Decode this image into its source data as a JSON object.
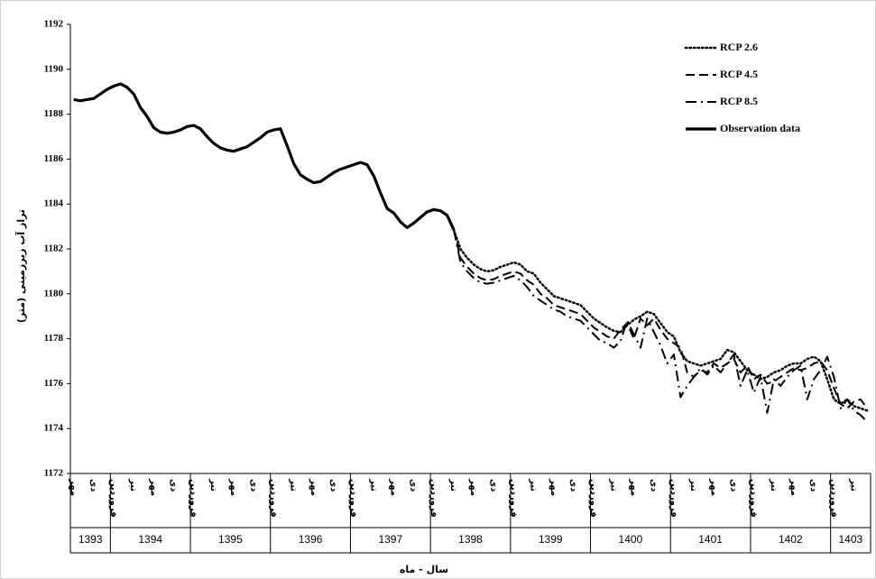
{
  "chart_data": {
    "type": "line",
    "y_label": "تراز آب زیرزمینی (متر)",
    "x_label": "سال - ماه",
    "ylim": [
      1172,
      1192
    ],
    "yticks": [
      1172,
      1174,
      1176,
      1178,
      1180,
      1182,
      1184,
      1186,
      1188,
      1190,
      1192
    ],
    "grid": false,
    "legend": "top-right",
    "categories": [
      "مهر",
      null,
      null,
      "دی",
      null,
      null,
      "فروردین",
      null,
      null,
      "تیر",
      null,
      null,
      "مهر",
      null,
      null,
      "دی",
      null,
      null,
      "فروردین",
      null,
      null,
      "تیر",
      null,
      null,
      "مهر",
      null,
      null,
      "دی",
      null,
      null,
      "فروردین",
      null,
      null,
      "تیر",
      null,
      null,
      "مهر",
      null,
      null,
      "دی",
      null,
      null,
      "فروردین",
      null,
      null,
      "تیر",
      null,
      null,
      "مهر",
      null,
      null,
      "دی",
      null,
      null,
      "فروردین",
      null,
      null,
      "تیر",
      null,
      null,
      "مهر",
      null,
      null,
      "دی",
      null,
      null,
      "فروردین",
      null,
      null,
      "تیر",
      null,
      null,
      "مهر",
      null,
      null,
      "دی",
      null,
      null,
      "فروردین",
      null,
      null,
      "تیر",
      null,
      null,
      "مهر",
      null,
      null,
      "دی",
      null,
      null,
      "فروردین",
      null,
      null,
      "تیر",
      null,
      null,
      "مهر",
      null,
      null,
      "دی",
      null,
      null,
      "فروردین",
      null,
      null,
      "تیر",
      null,
      null,
      "مهر",
      null,
      null,
      "دی",
      null,
      null,
      "فروردین",
      null,
      null,
      "تیر",
      null,
      null
    ],
    "year_categories": [
      "1393",
      null,
      null,
      null,
      null,
      null,
      "1394",
      null,
      null,
      null,
      null,
      null,
      null,
      null,
      null,
      null,
      null,
      null,
      "1395",
      null,
      null,
      null,
      null,
      null,
      null,
      null,
      null,
      null,
      null,
      null,
      "1396",
      null,
      null,
      null,
      null,
      null,
      null,
      null,
      null,
      null,
      null,
      null,
      "1397",
      null,
      null,
      null,
      null,
      null,
      null,
      null,
      null,
      null,
      null,
      null,
      "1398",
      null,
      null,
      null,
      null,
      null,
      null,
      null,
      null,
      null,
      null,
      null,
      "1399",
      null,
      null,
      null,
      null,
      null,
      null,
      null,
      null,
      null,
      null,
      null,
      "1400",
      null,
      null,
      null,
      null,
      null,
      null,
      null,
      null,
      null,
      null,
      null,
      "1401",
      null,
      null,
      null,
      null,
      null,
      null,
      null,
      null,
      null,
      null,
      null,
      "1402",
      null,
      null,
      null,
      null,
      null,
      null,
      null,
      null,
      null,
      null,
      null,
      "1403",
      null,
      null,
      null,
      null,
      null
    ],
    "series": [
      {
        "name": "RCP 2.6",
        "color": "#000000",
        "dash": "dotted",
        "values": [
          null,
          null,
          null,
          null,
          null,
          null,
          null,
          null,
          null,
          null,
          null,
          null,
          null,
          null,
          null,
          null,
          null,
          null,
          null,
          null,
          null,
          null,
          null,
          null,
          null,
          null,
          null,
          null,
          null,
          null,
          null,
          null,
          null,
          null,
          null,
          null,
          null,
          null,
          null,
          null,
          null,
          null,
          null,
          null,
          null,
          null,
          null,
          null,
          null,
          null,
          null,
          null,
          null,
          null,
          null,
          null,
          null,
          1182.85,
          1182.0,
          1181.6,
          1181.3,
          1181.1,
          1181.0,
          1181.05,
          1181.2,
          1181.3,
          1181.4,
          1181.3,
          1181.0,
          1180.9,
          1180.5,
          1180.2,
          1179.9,
          1179.8,
          1179.7,
          1179.6,
          1179.5,
          1179.2,
          1178.9,
          1178.7,
          1178.5,
          1178.35,
          1178.3,
          1178.6,
          1178.85,
          1179.0,
          1179.2,
          1179.1,
          1178.7,
          1178.3,
          1178.1,
          1177.4,
          1177.0,
          1176.9,
          1176.8,
          1176.9,
          1177.0,
          1177.1,
          1177.5,
          1177.4,
          1177.0,
          1176.6,
          1176.4,
          1176.2,
          1176.3,
          1176.5,
          1176.6,
          1176.8,
          1176.9,
          1176.9,
          1177.1,
          1177.2,
          1177.0,
          1176.2,
          1175.3,
          1175.1,
          1175.3,
          1175.0,
          1174.9,
          1174.8
        ]
      },
      {
        "name": "RCP 4.5",
        "color": "#000000",
        "dash": "dashed",
        "values": [
          null,
          null,
          null,
          null,
          null,
          null,
          null,
          null,
          null,
          null,
          null,
          null,
          null,
          null,
          null,
          null,
          null,
          null,
          null,
          null,
          null,
          null,
          null,
          null,
          null,
          null,
          null,
          null,
          null,
          null,
          null,
          null,
          null,
          null,
          null,
          null,
          null,
          null,
          null,
          null,
          null,
          null,
          null,
          null,
          null,
          null,
          null,
          null,
          null,
          null,
          null,
          null,
          null,
          null,
          null,
          null,
          null,
          1182.85,
          1181.6,
          1181.2,
          1180.9,
          1180.7,
          1180.6,
          1180.65,
          1180.8,
          1180.9,
          1181.0,
          1180.9,
          1180.6,
          1180.4,
          1180.0,
          1179.8,
          1179.5,
          1179.4,
          1179.3,
          1179.2,
          1179.1,
          1178.8,
          1178.5,
          1178.3,
          1178.1,
          1178.0,
          1178.4,
          1178.7,
          1178.0,
          1178.9,
          1178.6,
          1178.9,
          1178.4,
          1178.0,
          1177.8,
          1177.6,
          1176.5,
          1176.3,
          1176.6,
          1176.5,
          1176.9,
          1176.7,
          1176.9,
          1177.1,
          1176.5,
          1176.8,
          1176.2,
          1176.4,
          1176.0,
          1176.1,
          1176.3,
          1176.5,
          1176.7,
          1176.6,
          1176.7,
          1176.9,
          1177.0,
          1176.6,
          1175.8,
          1175.1,
          1174.9,
          1175.2,
          1175.3,
          1174.9
        ]
      },
      {
        "name": "RCP 8.5",
        "color": "#000000",
        "dash": "dashdot",
        "values": [
          null,
          null,
          null,
          null,
          null,
          null,
          null,
          null,
          null,
          null,
          null,
          null,
          null,
          null,
          null,
          null,
          null,
          null,
          null,
          null,
          null,
          null,
          null,
          null,
          null,
          null,
          null,
          null,
          null,
          null,
          null,
          null,
          null,
          null,
          null,
          null,
          null,
          null,
          null,
          null,
          null,
          null,
          null,
          null,
          null,
          null,
          null,
          null,
          null,
          null,
          null,
          null,
          null,
          null,
          null,
          null,
          null,
          1182.85,
          1181.4,
          1181.0,
          1180.7,
          1180.5,
          1180.45,
          1180.5,
          1180.6,
          1180.7,
          1180.8,
          1180.6,
          1180.3,
          1179.9,
          1179.7,
          1179.5,
          1179.3,
          1179.2,
          1179.0,
          1178.9,
          1178.8,
          1178.5,
          1178.2,
          1177.9,
          1177.8,
          1177.6,
          1177.9,
          1178.8,
          1178.2,
          1177.6,
          1178.9,
          1178.3,
          1177.7,
          1176.9,
          1177.3,
          1175.4,
          1175.9,
          1176.3,
          1176.7,
          1176.4,
          1176.8,
          1176.5,
          1176.9,
          1177.3,
          1175.9,
          1176.6,
          1175.6,
          1176.3,
          1174.7,
          1176.2,
          1175.9,
          1176.3,
          1176.6,
          1176.8,
          1175.3,
          1176.2,
          1176.6,
          1177.2,
          1176.3,
          1174.9,
          1175.3,
          1174.8,
          1174.6,
          1174.3
        ]
      },
      {
        "name": "Observation data",
        "color": "#000000",
        "dash": "solid",
        "values": [
          1188.65,
          1188.6,
          1188.65,
          1188.7,
          1188.9,
          1189.1,
          1189.25,
          1189.35,
          1189.2,
          1188.9,
          1188.3,
          1187.9,
          1187.4,
          1187.2,
          1187.15,
          1187.2,
          1187.3,
          1187.45,
          1187.5,
          1187.35,
          1187.0,
          1186.7,
          1186.5,
          1186.4,
          1186.35,
          1186.45,
          1186.55,
          1186.75,
          1186.95,
          1187.2,
          1187.3,
          1187.35,
          1186.6,
          1185.8,
          1185.3,
          1185.1,
          1184.95,
          1185.0,
          1185.2,
          1185.4,
          1185.55,
          1185.65,
          1185.75,
          1185.85,
          1185.75,
          1185.25,
          1184.5,
          1183.8,
          1183.6,
          1183.2,
          1182.95,
          1183.15,
          1183.4,
          1183.65,
          1183.75,
          1183.7,
          1183.5,
          1182.85,
          null,
          null,
          null,
          null,
          null,
          null,
          null,
          null,
          null,
          null,
          null,
          null,
          null,
          null,
          null,
          null,
          null,
          null,
          null,
          null,
          null,
          null,
          null,
          null,
          null,
          null,
          null,
          null,
          null,
          null,
          null,
          null,
          null,
          null,
          null,
          null,
          null,
          null,
          null,
          null,
          null,
          null,
          null,
          null,
          null,
          null,
          null,
          null,
          null,
          null,
          null,
          null,
          null,
          null,
          null,
          null,
          null,
          null,
          null,
          null,
          null,
          null
        ]
      }
    ]
  }
}
